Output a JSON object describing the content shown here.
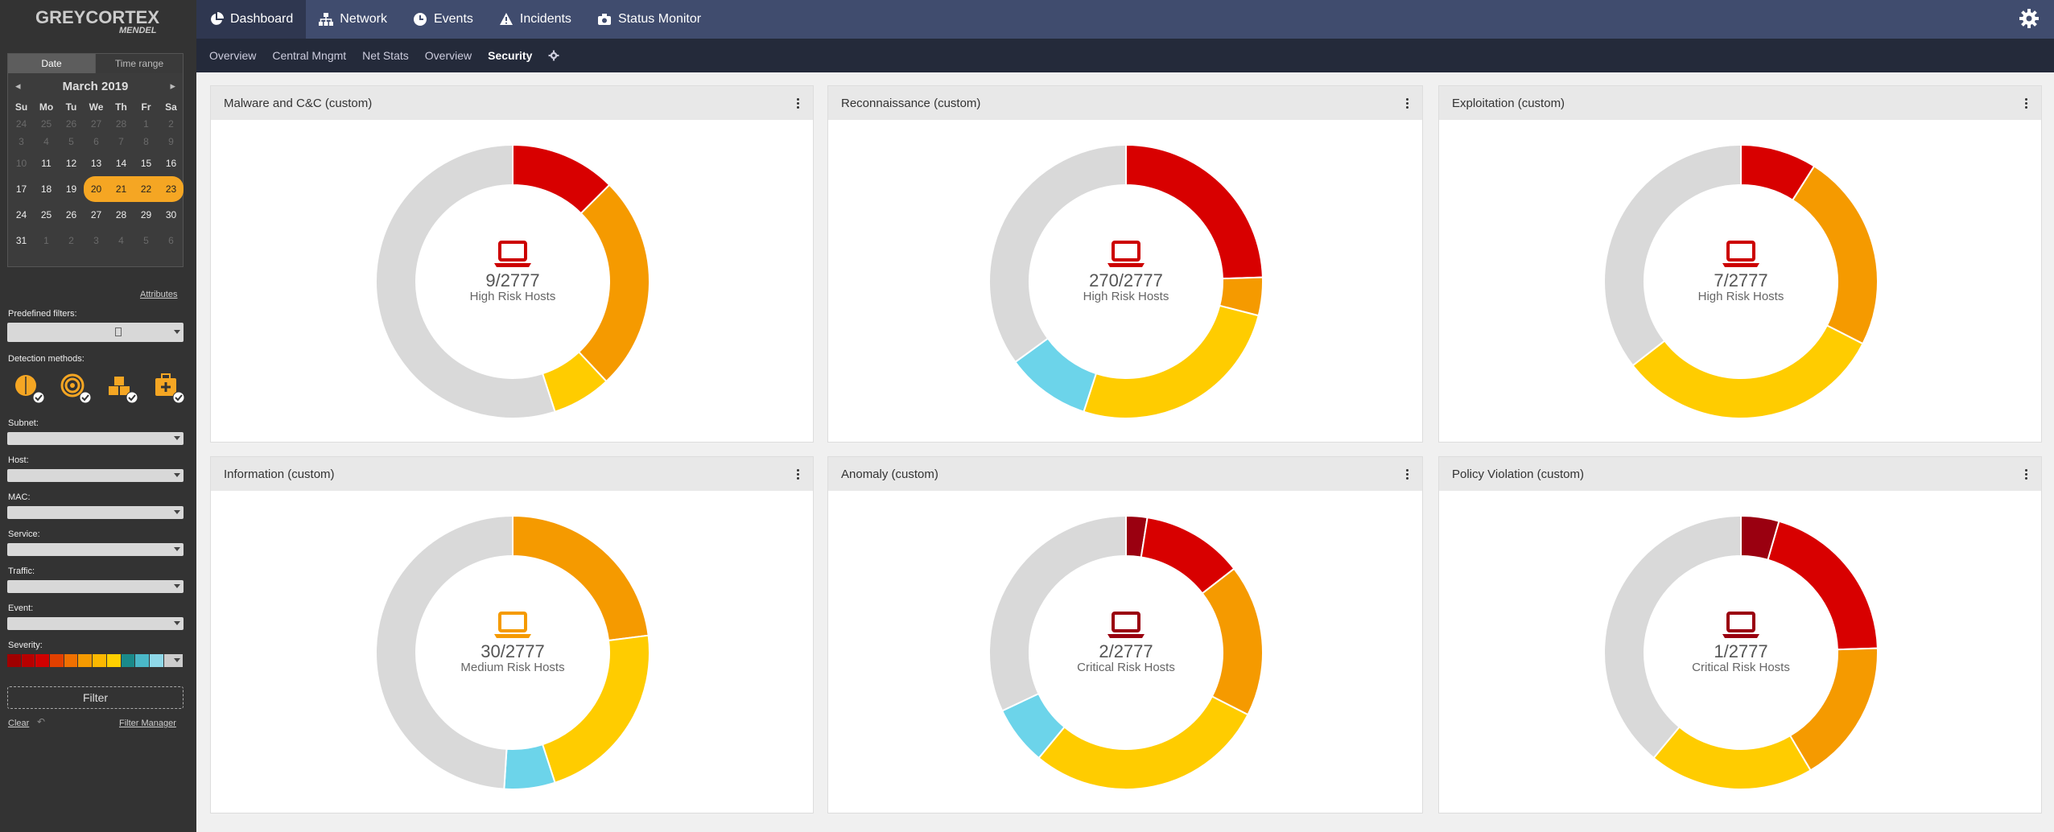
{
  "app": {
    "logo_line1": "GREYCORTEX",
    "logo_line2": "MENDEL"
  },
  "topnav": [
    {
      "label": "Dashboard",
      "icon": "pie-chart-icon"
    },
    {
      "label": "Network",
      "icon": "sitemap-icon"
    },
    {
      "label": "Events",
      "icon": "clock-icon"
    },
    {
      "label": "Incidents",
      "icon": "warning-icon"
    },
    {
      "label": "Status Monitor",
      "icon": "camera-icon"
    }
  ],
  "subnav": [
    "Overview",
    "Central Mngmt",
    "Net Stats",
    "Overview",
    "Security"
  ],
  "calendar": {
    "tab_date": "Date",
    "tab_range": "Time range",
    "month": "March 2019",
    "days": [
      "Su",
      "Mo",
      "Tu",
      "We",
      "Th",
      "Fr",
      "Sa"
    ],
    "weeks": [
      [
        "24",
        "25",
        "26",
        "27",
        "28",
        "1",
        "2"
      ],
      [
        "3",
        "4",
        "5",
        "6",
        "7",
        "8",
        "9"
      ],
      [
        "10",
        "11",
        "12",
        "13",
        "14",
        "15",
        "16"
      ],
      [
        "17",
        "18",
        "19",
        "20",
        "21",
        "22",
        "23"
      ],
      [
        "24",
        "25",
        "26",
        "27",
        "28",
        "29",
        "30"
      ],
      [
        "31",
        "1",
        "2",
        "3",
        "4",
        "5",
        "6"
      ]
    ]
  },
  "filters": {
    "attributes": "Attributes",
    "predefined": "Predefined filters:",
    "detection": "Detection methods:",
    "subnet": "Subnet:",
    "host": "Host:",
    "mac": "MAC:",
    "service": "Service:",
    "traffic": "Traffic:",
    "event": "Event:",
    "severity": "Severity:",
    "filter_button": "Filter",
    "clear": "Clear",
    "filter_manager": "Filter Manager"
  },
  "severity_colors": [
    "#a00000",
    "#b80000",
    "#d00000",
    "#e24000",
    "#f07000",
    "#f59a00",
    "#fcb800",
    "#ffd000",
    "#1a8a8a",
    "#4ab8c8",
    "#8fd8e8",
    "#cccccc"
  ],
  "panels": [
    {
      "title": "Malware and C&C (custom)",
      "value": "9/2777",
      "label": "High Risk Hosts",
      "icon_color": "#cc0000",
      "chart_data": {
        "type": "pie",
        "segments": [
          {
            "color": "#d80000",
            "value": 0.125
          },
          {
            "color": "#f59a00",
            "value": 0.255
          },
          {
            "color": "#ffcc00",
            "value": 0.07
          },
          {
            "color": "#d9d9d9",
            "value": 0.55
          }
        ]
      }
    },
    {
      "title": "Reconnaissance (custom)",
      "value": "270/2777",
      "label": "High Risk Hosts",
      "icon_color": "#cc0000",
      "chart_data": {
        "type": "pie",
        "segments": [
          {
            "color": "#d80000",
            "value": 0.245
          },
          {
            "color": "#f59a00",
            "value": 0.045
          },
          {
            "color": "#ffcc00",
            "value": 0.26
          },
          {
            "color": "#6cd4ea",
            "value": 0.1
          },
          {
            "color": "#d9d9d9",
            "value": 0.35
          }
        ]
      }
    },
    {
      "title": "Exploitation (custom)",
      "value": "7/2777",
      "label": "High Risk Hosts",
      "icon_color": "#cc0000",
      "chart_data": {
        "type": "pie",
        "segments": [
          {
            "color": "#d80000",
            "value": 0.09
          },
          {
            "color": "#f59a00",
            "value": 0.235
          },
          {
            "color": "#ffcc00",
            "value": 0.32
          },
          {
            "color": "#d9d9d9",
            "value": 0.355
          }
        ]
      }
    },
    {
      "title": "Information (custom)",
      "value": "30/2777",
      "label": "Medium Risk Hosts",
      "icon_color": "#f59a00",
      "chart_data": {
        "type": "pie",
        "segments": [
          {
            "color": "#f59a00",
            "value": 0.23
          },
          {
            "color": "#ffcc00",
            "value": 0.22
          },
          {
            "color": "#6cd4ea",
            "value": 0.06
          },
          {
            "color": "#d9d9d9",
            "value": 0.49
          }
        ]
      }
    },
    {
      "title": "Anomaly (custom)",
      "value": "2/2777",
      "label": "Critical Risk Hosts",
      "icon_color": "#9a0010",
      "chart_data": {
        "type": "pie",
        "segments": [
          {
            "color": "#9a0010",
            "value": 0.025
          },
          {
            "color": "#d80000",
            "value": 0.12
          },
          {
            "color": "#f59a00",
            "value": 0.18
          },
          {
            "color": "#ffcc00",
            "value": 0.285
          },
          {
            "color": "#6cd4ea",
            "value": 0.07
          },
          {
            "color": "#d9d9d9",
            "value": 0.32
          }
        ]
      }
    },
    {
      "title": "Policy Violation (custom)",
      "value": "1/2777",
      "label": "Critical Risk Hosts",
      "icon_color": "#9a0010",
      "chart_data": {
        "type": "pie",
        "segments": [
          {
            "color": "#9a0010",
            "value": 0.045
          },
          {
            "color": "#d80000",
            "value": 0.2
          },
          {
            "color": "#f59a00",
            "value": 0.17
          },
          {
            "color": "#ffcc00",
            "value": 0.195
          },
          {
            "color": "#d9d9d9",
            "value": 0.39
          }
        ]
      }
    }
  ]
}
